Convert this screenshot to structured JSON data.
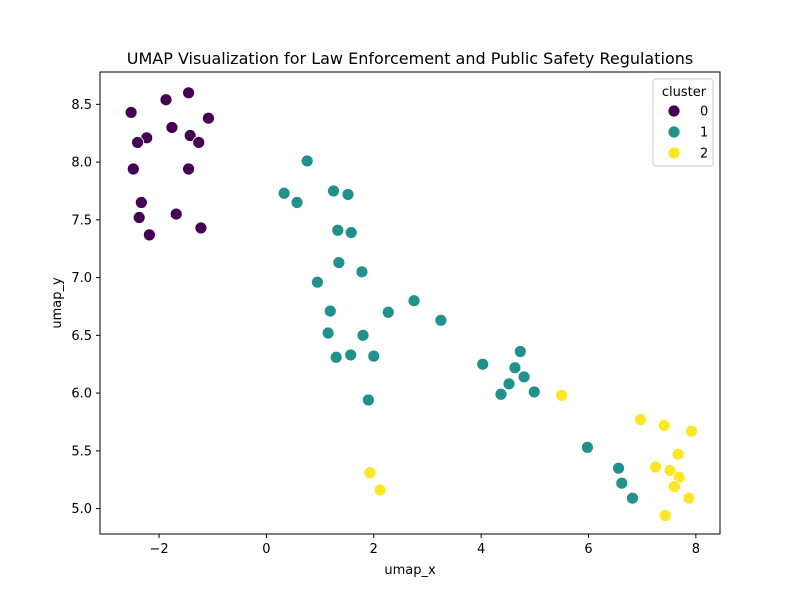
{
  "chart_data": {
    "type": "scatter",
    "title": "UMAP Visualization for Law Enforcement and Public Safety Regulations",
    "xlabel": "umap_x",
    "ylabel": "umap_y",
    "xlim": [
      -3.1,
      8.45
    ],
    "ylim": [
      4.78,
      8.78
    ],
    "xticks": [
      -2,
      0,
      2,
      4,
      6,
      8
    ],
    "xtick_labels": [
      "−2",
      "0",
      "2",
      "4",
      "6",
      "8"
    ],
    "yticks": [
      5.0,
      5.5,
      6.0,
      6.5,
      7.0,
      7.5,
      8.0,
      8.5
    ],
    "ytick_labels": [
      "5.0",
      "5.5",
      "6.0",
      "6.5",
      "7.0",
      "7.5",
      "8.0",
      "8.5"
    ],
    "grid": false,
    "legend": {
      "title": "cluster",
      "placement": "top-right",
      "entries": [
        {
          "label": "0",
          "color": "#440154"
        },
        {
          "label": "1",
          "color": "#21918c"
        },
        {
          "label": "2",
          "color": "#fde725"
        }
      ]
    },
    "series": [
      {
        "cluster": 0,
        "color": "#440154",
        "points": [
          {
            "x": -2.52,
            "y": 8.43
          },
          {
            "x": -1.87,
            "y": 8.54
          },
          {
            "x": -1.45,
            "y": 8.6
          },
          {
            "x": -1.08,
            "y": 8.38
          },
          {
            "x": -2.23,
            "y": 8.21
          },
          {
            "x": -2.4,
            "y": 8.17
          },
          {
            "x": -1.76,
            "y": 8.3
          },
          {
            "x": -1.42,
            "y": 8.23
          },
          {
            "x": -1.26,
            "y": 8.17
          },
          {
            "x": -2.48,
            "y": 7.94
          },
          {
            "x": -1.45,
            "y": 7.94
          },
          {
            "x": -2.33,
            "y": 7.65
          },
          {
            "x": -2.37,
            "y": 7.52
          },
          {
            "x": -1.68,
            "y": 7.55
          },
          {
            "x": -2.18,
            "y": 7.37
          },
          {
            "x": -1.22,
            "y": 7.43
          }
        ]
      },
      {
        "cluster": 1,
        "color": "#21918c",
        "points": [
          {
            "x": 0.76,
            "y": 8.01
          },
          {
            "x": 0.33,
            "y": 7.73
          },
          {
            "x": 0.57,
            "y": 7.65
          },
          {
            "x": 1.25,
            "y": 7.75
          },
          {
            "x": 1.52,
            "y": 7.72
          },
          {
            "x": 1.33,
            "y": 7.41
          },
          {
            "x": 1.58,
            "y": 7.39
          },
          {
            "x": 1.35,
            "y": 7.13
          },
          {
            "x": 1.78,
            "y": 7.05
          },
          {
            "x": 0.95,
            "y": 6.96
          },
          {
            "x": 2.75,
            "y": 6.8
          },
          {
            "x": 1.19,
            "y": 6.71
          },
          {
            "x": 2.27,
            "y": 6.7
          },
          {
            "x": 3.25,
            "y": 6.63
          },
          {
            "x": 1.15,
            "y": 6.52
          },
          {
            "x": 1.8,
            "y": 6.5
          },
          {
            "x": 1.3,
            "y": 6.31
          },
          {
            "x": 1.57,
            "y": 6.33
          },
          {
            "x": 2.0,
            "y": 6.32
          },
          {
            "x": 4.73,
            "y": 6.36
          },
          {
            "x": 4.03,
            "y": 6.25
          },
          {
            "x": 4.63,
            "y": 6.22
          },
          {
            "x": 4.8,
            "y": 6.14
          },
          {
            "x": 4.52,
            "y": 6.08
          },
          {
            "x": 4.99,
            "y": 6.01
          },
          {
            "x": 4.37,
            "y": 5.99
          },
          {
            "x": 1.9,
            "y": 5.94
          },
          {
            "x": 5.98,
            "y": 5.53
          },
          {
            "x": 6.56,
            "y": 5.35
          },
          {
            "x": 6.62,
            "y": 5.22
          },
          {
            "x": 6.82,
            "y": 5.09
          }
        ]
      },
      {
        "cluster": 2,
        "color": "#fde725",
        "points": [
          {
            "x": 5.5,
            "y": 5.98
          },
          {
            "x": 6.97,
            "y": 5.77
          },
          {
            "x": 7.41,
            "y": 5.72
          },
          {
            "x": 7.92,
            "y": 5.67
          },
          {
            "x": 7.67,
            "y": 5.47
          },
          {
            "x": 7.25,
            "y": 5.36
          },
          {
            "x": 7.52,
            "y": 5.33
          },
          {
            "x": 7.69,
            "y": 5.27
          },
          {
            "x": 7.6,
            "y": 5.19
          },
          {
            "x": 1.93,
            "y": 5.31
          },
          {
            "x": 2.12,
            "y": 5.16
          },
          {
            "x": 7.87,
            "y": 5.09
          },
          {
            "x": 7.43,
            "y": 4.94
          }
        ]
      }
    ]
  }
}
